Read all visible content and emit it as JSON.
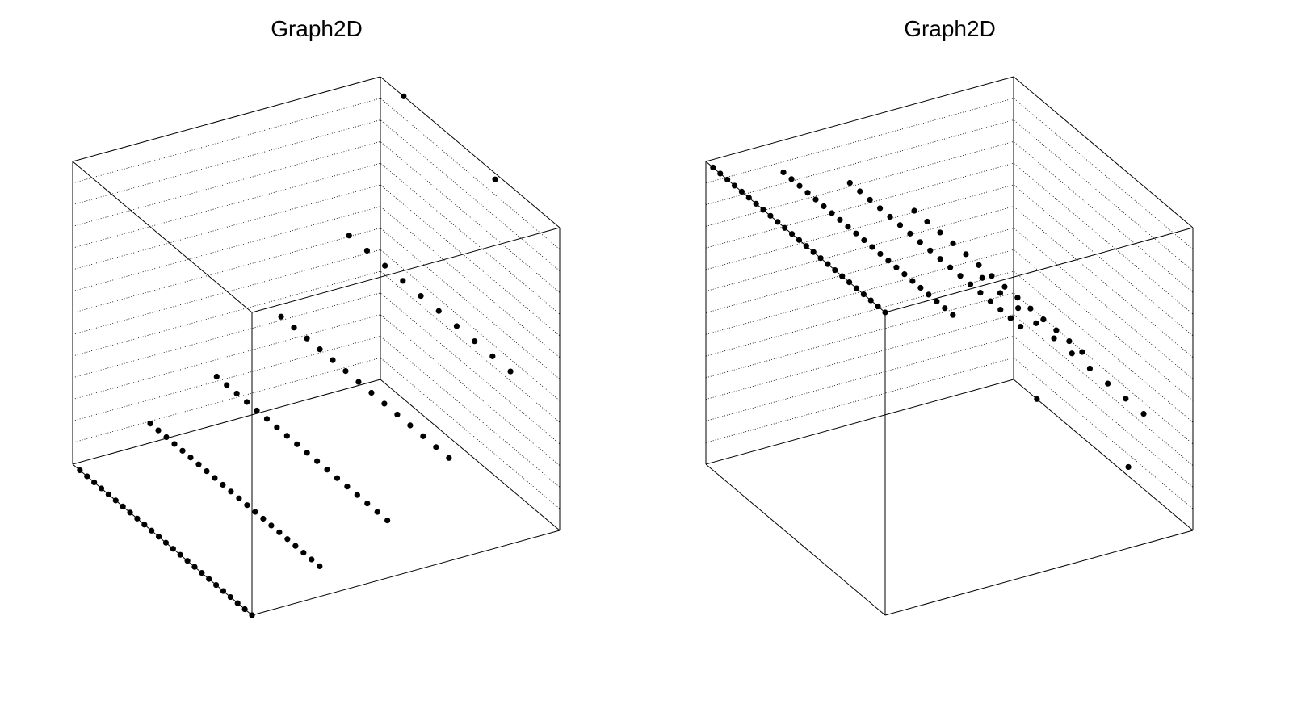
{
  "chart_data": [
    {
      "type": "scatter3d",
      "title": "Graph2D",
      "color": "#000000",
      "x": [
        0,
        0,
        0,
        0,
        0,
        0,
        0,
        0,
        0,
        0,
        0,
        0,
        0,
        0,
        0,
        0,
        0,
        0,
        0,
        0,
        0,
        0,
        0,
        0,
        0,
        0.22,
        0.22,
        0.22,
        0.22,
        0.22,
        0.22,
        0.22,
        0.22,
        0.22,
        0.22,
        0.22,
        0.22,
        0.22,
        0.22,
        0.22,
        0.22,
        0.22,
        0.22,
        0.22,
        0.22,
        0.22,
        0.22,
        0.44,
        0.44,
        0.44,
        0.44,
        0.44,
        0.44,
        0.44,
        0.44,
        0.44,
        0.44,
        0.44,
        0.44,
        0.44,
        0.44,
        0.44,
        0.44,
        0.44,
        0.44,
        0.64,
        0.64,
        0.64,
        0.64,
        0.64,
        0.64,
        0.64,
        0.64,
        0.64,
        0.64,
        0.64,
        0.64,
        0.64,
        0.64,
        0.84,
        0.84,
        0.84,
        0.84,
        0.84,
        0.84,
        0.84,
        0.84,
        0.84,
        0.84,
        1,
        1
      ],
      "y": [
        0,
        0.04,
        0.08,
        0.12,
        0.16,
        0.2,
        0.24,
        0.28,
        0.32,
        0.36,
        0.4,
        0.44,
        0.48,
        0.52,
        0.56,
        0.6,
        0.64,
        0.68,
        0.72,
        0.76,
        0.8,
        0.84,
        0.88,
        0.92,
        0.96,
        0,
        0.045,
        0.09,
        0.135,
        0.18,
        0.225,
        0.27,
        0.315,
        0.36,
        0.405,
        0.45,
        0.495,
        0.54,
        0.585,
        0.63,
        0.675,
        0.72,
        0.765,
        0.81,
        0.855,
        0.9,
        0.945,
        0,
        0.056,
        0.112,
        0.168,
        0.224,
        0.28,
        0.336,
        0.392,
        0.448,
        0.504,
        0.56,
        0.616,
        0.672,
        0.728,
        0.784,
        0.84,
        0.896,
        0.952,
        0,
        0.072,
        0.144,
        0.216,
        0.288,
        0.36,
        0.432,
        0.504,
        0.576,
        0.648,
        0.72,
        0.792,
        0.864,
        0.936,
        0,
        0.1,
        0.2,
        0.3,
        0.4,
        0.5,
        0.6,
        0.7,
        0.8,
        0.9,
        0.36,
        0.87
      ],
      "z": [
        0,
        0,
        0,
        0,
        0,
        0,
        0,
        0,
        0,
        0,
        0,
        0,
        0,
        0,
        0,
        0,
        0,
        0,
        0,
        0,
        0,
        0,
        0,
        0,
        0,
        0.1,
        0.1,
        0.1,
        0.1,
        0.1,
        0.1,
        0.1,
        0.1,
        0.1,
        0.1,
        0.1,
        0.1,
        0.1,
        0.1,
        0.1,
        0.1,
        0.1,
        0.1,
        0.1,
        0.1,
        0.1,
        0.1,
        0.19,
        0.19,
        0.19,
        0.19,
        0.19,
        0.19,
        0.19,
        0.19,
        0.19,
        0.19,
        0.19,
        0.19,
        0.19,
        0.19,
        0.19,
        0.19,
        0.19,
        0.19,
        0.34,
        0.34,
        0.34,
        0.34,
        0.34,
        0.34,
        0.34,
        0.34,
        0.34,
        0.34,
        0.34,
        0.34,
        0.34,
        0.34,
        0.57,
        0.57,
        0.57,
        0.57,
        0.57,
        0.57,
        0.57,
        0.57,
        0.57,
        0.57,
        0.98,
        1
      ]
    },
    {
      "type": "scatter3d",
      "title": "Graph2D",
      "color": "#000000",
      "x": [
        0,
        0,
        0,
        0,
        0,
        0,
        0,
        0,
        0,
        0,
        0,
        0,
        0,
        0,
        0,
        0,
        0,
        0,
        0,
        0,
        0,
        0,
        0,
        0,
        0,
        0.22,
        0.22,
        0.22,
        0.22,
        0.22,
        0.22,
        0.22,
        0.22,
        0.22,
        0.22,
        0.22,
        0.22,
        0.22,
        0.22,
        0.22,
        0.22,
        0.22,
        0.22,
        0.22,
        0.22,
        0.22,
        0.22,
        0.44,
        0.44,
        0.44,
        0.44,
        0.44,
        0.44,
        0.44,
        0.44,
        0.44,
        0.44,
        0.44,
        0.44,
        0.44,
        0.44,
        0.44,
        0.44,
        0.44,
        0.44,
        0.64,
        0.64,
        0.64,
        0.64,
        0.64,
        0.64,
        0.64,
        0.64,
        0.64,
        0.64,
        0.64,
        0.64,
        0.64,
        0.64,
        0.84,
        0.84,
        0.84,
        0.84,
        0.84,
        0.84,
        0.84,
        0.84,
        0.84,
        0.84,
        1,
        1
      ],
      "y": [
        0,
        0.04,
        0.08,
        0.12,
        0.16,
        0.2,
        0.24,
        0.28,
        0.32,
        0.36,
        0.4,
        0.44,
        0.48,
        0.52,
        0.56,
        0.6,
        0.64,
        0.68,
        0.72,
        0.76,
        0.8,
        0.84,
        0.88,
        0.92,
        0.96,
        0,
        0.045,
        0.09,
        0.135,
        0.18,
        0.225,
        0.27,
        0.315,
        0.36,
        0.405,
        0.45,
        0.495,
        0.54,
        0.585,
        0.63,
        0.675,
        0.72,
        0.765,
        0.81,
        0.855,
        0.9,
        0.945,
        0,
        0.056,
        0.112,
        0.168,
        0.224,
        0.28,
        0.336,
        0.392,
        0.448,
        0.504,
        0.56,
        0.616,
        0.672,
        0.728,
        0.784,
        0.84,
        0.896,
        0.952,
        0,
        0.072,
        0.144,
        0.216,
        0.288,
        0.36,
        0.432,
        0.504,
        0.576,
        0.648,
        0.72,
        0.792,
        0.864,
        0.936,
        0,
        0.1,
        0.2,
        0.3,
        0.4,
        0.5,
        0.6,
        0.7,
        0.8,
        0.9,
        0.36,
        0.87
      ],
      "z": [
        1,
        1,
        1,
        1,
        1,
        1,
        1,
        1,
        1,
        1,
        1,
        1,
        1,
        1,
        1,
        1,
        1,
        1,
        1,
        1,
        1,
        1,
        1,
        1,
        1,
        0.93,
        0.93,
        0.93,
        0.93,
        0.93,
        0.93,
        0.93,
        0.93,
        0.93,
        0.93,
        0.93,
        0.93,
        0.93,
        0.93,
        0.93,
        0.93,
        0.93,
        0.93,
        0.93,
        0.93,
        0.93,
        0.93,
        0.83,
        0.83,
        0.83,
        0.83,
        0.83,
        0.83,
        0.83,
        0.83,
        0.83,
        0.83,
        0.83,
        0.83,
        0.83,
        0.83,
        0.83,
        0.83,
        0.83,
        0.83,
        0.69,
        0.69,
        0.69,
        0.69,
        0.69,
        0.69,
        0.69,
        0.69,
        0.69,
        0.69,
        0.69,
        0.69,
        0.69,
        0.69,
        0.43,
        0.43,
        0.43,
        0.43,
        0.43,
        0.43,
        0.43,
        0.43,
        0.43,
        0.43,
        0.03,
        0
      ]
    }
  ]
}
